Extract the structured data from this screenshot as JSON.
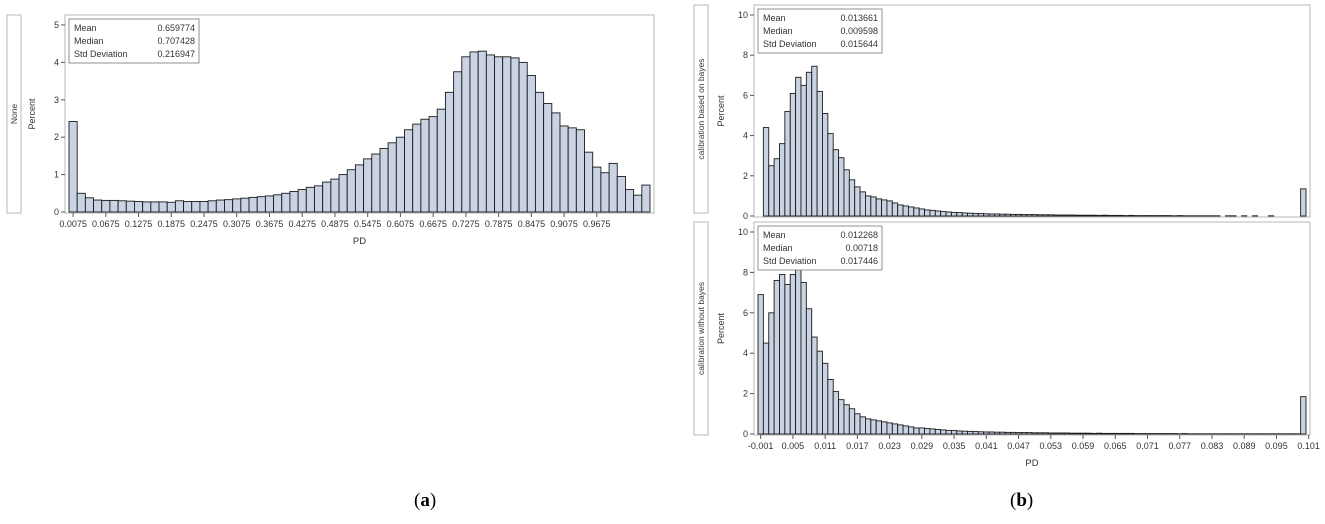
{
  "colors": {
    "bar_fill": "#c9d3e3",
    "bar_stroke": "#1b1b1b",
    "frame": "#b7b7b7",
    "text": "#333333"
  },
  "captions": {
    "a_open": "(",
    "a_letter": "a",
    "a_close": ")",
    "b_open": "(",
    "b_letter": "b",
    "b_close": ")"
  },
  "chart_data": [
    {
      "type": "bar",
      "panel_label": "None",
      "xlabel": "PD",
      "ylabel": "Percent",
      "ylim": [
        0,
        5
      ],
      "yticks": [
        0,
        1,
        2,
        3,
        4,
        5
      ],
      "bin_start": 0.0,
      "bin_width": 0.015,
      "xtick_labels": [
        "0.0075",
        "0.0675",
        "0.1275",
        "0.1875",
        "0.2475",
        "0.3075",
        "0.3675",
        "0.4275",
        "0.4875",
        "0.5475",
        "0.6075",
        "0.6675",
        "0.7275",
        "0.7875",
        "0.8475",
        "0.9075",
        "0.9675"
      ],
      "stats": [
        [
          "Mean",
          "0.659774"
        ],
        [
          "Median",
          "0.707428"
        ],
        [
          "Std Deviation",
          "0.216947"
        ]
      ],
      "values": [
        2.42,
        0.5,
        0.38,
        0.32,
        0.31,
        0.31,
        0.3,
        0.29,
        0.28,
        0.27,
        0.27,
        0.27,
        0.26,
        0.3,
        0.28,
        0.28,
        0.28,
        0.3,
        0.32,
        0.33,
        0.35,
        0.37,
        0.39,
        0.41,
        0.43,
        0.46,
        0.5,
        0.55,
        0.6,
        0.66,
        0.7,
        0.8,
        0.88,
        1.0,
        1.13,
        1.26,
        1.42,
        1.55,
        1.7,
        1.85,
        2.0,
        2.2,
        2.35,
        2.48,
        2.55,
        2.75,
        3.2,
        3.75,
        4.15,
        4.28,
        4.3,
        4.2,
        4.15,
        4.15,
        4.12,
        4.0,
        3.65,
        3.2,
        2.9,
        2.65,
        2.3,
        2.25,
        2.2,
        1.6,
        1.2,
        1.05,
        1.3,
        0.95,
        0.6,
        0.45,
        0.72
      ],
      "grid": false
    },
    {
      "type": "bar",
      "panel_label": "calibration based on bayes",
      "xlabel": "",
      "ylabel": "Percent",
      "ylim": [
        0,
        10
      ],
      "yticks": [
        0,
        2,
        4,
        6,
        8,
        10
      ],
      "bin_start": -0.001,
      "bin_width": 0.001,
      "stats": [
        [
          "Mean",
          "0.013661"
        ],
        [
          "Median",
          "0.009598"
        ],
        [
          "Std Deviation",
          "0.015644"
        ]
      ],
      "values": [
        0,
        4.4,
        2.5,
        2.85,
        3.6,
        5.2,
        6.1,
        6.9,
        6.5,
        7.15,
        7.45,
        6.2,
        5.1,
        4.1,
        3.3,
        2.9,
        2.3,
        1.8,
        1.45,
        1.2,
        1.0,
        0.95,
        0.85,
        0.8,
        0.75,
        0.65,
        0.55,
        0.5,
        0.45,
        0.4,
        0.35,
        0.3,
        0.28,
        0.25,
        0.22,
        0.2,
        0.18,
        0.17,
        0.15,
        0.14,
        0.13,
        0.12,
        0.11,
        0.1,
        0.1,
        0.09,
        0.09,
        0.08,
        0.08,
        0.07,
        0.07,
        0.07,
        0.06,
        0.06,
        0.06,
        0.05,
        0.05,
        0.05,
        0.05,
        0.04,
        0.04,
        0.04,
        0.04,
        0.03,
        0.04,
        0.03,
        0.03,
        0.03,
        0.02,
        0.03,
        0.02,
        0.02,
        0.02,
        0.02,
        0.02,
        0.02,
        0.02,
        0.01,
        0.02,
        0.01,
        0.01,
        0.01,
        0.01,
        0.01,
        0.01,
        0.01,
        0.0,
        0.01,
        0.01,
        0.0,
        0.01,
        0.0,
        0.01,
        0.0,
        0.0,
        0.01,
        0.0,
        0.0,
        0.0,
        0.0,
        0.0,
        1.35
      ],
      "grid": false
    },
    {
      "type": "bar",
      "panel_label": "calibration without bayes",
      "xlabel": "PD",
      "ylabel": "Percent",
      "ylim": [
        0,
        10
      ],
      "yticks": [
        0,
        2,
        4,
        6,
        8,
        10
      ],
      "bin_start": -0.001,
      "bin_width": 0.001,
      "xtick_labels": [
        "-0.001",
        "0.005",
        "0.011",
        "0.017",
        "0.023",
        "0.029",
        "0.035",
        "0.041",
        "0.047",
        "0.053",
        "0.059",
        "0.065",
        "0.071",
        "0.077",
        "0.083",
        "0.089",
        "0.095",
        "0.101"
      ],
      "stats": [
        [
          "Mean",
          "0.012268"
        ],
        [
          "Median",
          "0.00718"
        ],
        [
          "Std Deviation",
          "0.017446"
        ]
      ],
      "values": [
        6.9,
        4.5,
        6.0,
        7.6,
        7.9,
        7.4,
        7.9,
        8.4,
        7.5,
        6.2,
        4.8,
        4.1,
        3.5,
        2.7,
        2.1,
        1.7,
        1.45,
        1.25,
        1.0,
        0.85,
        0.75,
        0.7,
        0.65,
        0.6,
        0.55,
        0.5,
        0.45,
        0.4,
        0.35,
        0.3,
        0.3,
        0.27,
        0.25,
        0.22,
        0.2,
        0.18,
        0.17,
        0.15,
        0.14,
        0.13,
        0.12,
        0.11,
        0.1,
        0.1,
        0.09,
        0.09,
        0.08,
        0.08,
        0.07,
        0.07,
        0.07,
        0.06,
        0.06,
        0.06,
        0.05,
        0.05,
        0.05,
        0.05,
        0.04,
        0.04,
        0.04,
        0.04,
        0.03,
        0.04,
        0.03,
        0.03,
        0.03,
        0.03,
        0.03,
        0.03,
        0.02,
        0.02,
        0.02,
        0.02,
        0.02,
        0.02,
        0.02,
        0.02,
        0.01,
        0.02,
        0.01,
        0.01,
        0.01,
        0.01,
        0.01,
        0.01,
        0.01,
        0.01,
        0.01,
        0.01,
        0.01,
        0.01,
        0.01,
        0.01,
        0.01,
        0.01,
        0.01,
        0.01,
        0.01,
        0.01,
        0.01,
        1.85
      ],
      "grid": false
    }
  ]
}
